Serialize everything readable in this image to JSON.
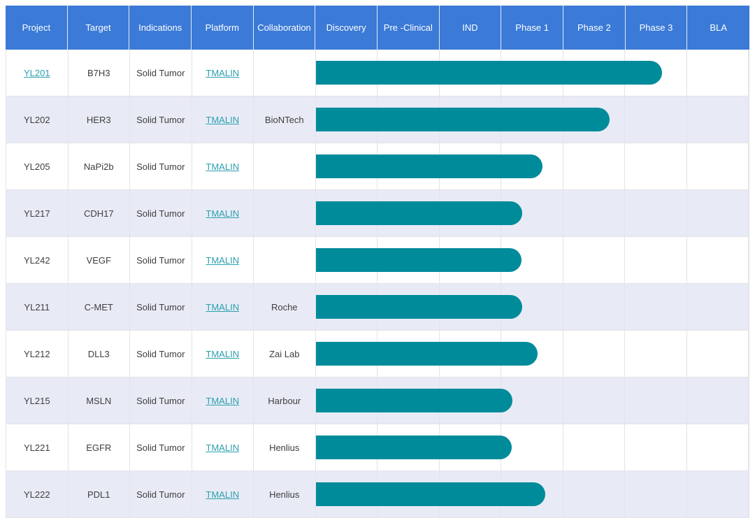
{
  "header": {
    "columns": [
      "Project",
      "Target",
      "Indications",
      "Platform",
      "Collaboration",
      "Discovery",
      "Pre -Clinical",
      "IND",
      "Phase 1",
      "Phase 2",
      "Phase 3",
      "BLA"
    ]
  },
  "chart_data": {
    "type": "table",
    "subtype": "gantt-pipeline",
    "stage_columns": [
      "Discovery",
      "Pre -Clinical",
      "IND",
      "Phase 1",
      "Phase 2",
      "Phase 3",
      "BLA"
    ],
    "stage_axis_note": "bar_units measured in column widths from start of Discovery; 7 units = full span through BLA",
    "rows": [
      {
        "project": "YL201",
        "project_is_link": true,
        "target": "B7H3",
        "indications": "Solid Tumor",
        "platform": "TMALIN",
        "collaboration": "",
        "stage_reached": "Phase 3",
        "bar_units": 5.6
      },
      {
        "project": "YL202",
        "project_is_link": false,
        "target": "HER3",
        "indications": "Solid Tumor",
        "platform": "TMALIN",
        "collaboration": "BioNTech",
        "stage_reached": "Phase 2",
        "bar_units": 4.75
      },
      {
        "project": "YL205",
        "project_is_link": false,
        "target": "NaPi2b",
        "indications": "Solid Tumor",
        "platform": "TMALIN",
        "collaboration": "",
        "stage_reached": "Phase 1",
        "bar_units": 3.67
      },
      {
        "project": "YL217",
        "project_is_link": false,
        "target": "CDH17",
        "indications": "Solid Tumor",
        "platform": "TMALIN",
        "collaboration": "",
        "stage_reached": "Phase 1",
        "bar_units": 3.34
      },
      {
        "project": "YL242",
        "project_is_link": false,
        "target": "VEGF",
        "indications": "Solid Tumor",
        "platform": "TMALIN",
        "collaboration": "",
        "stage_reached": "Phase 1",
        "bar_units": 3.33
      },
      {
        "project": "YL211",
        "project_is_link": false,
        "target": "C-MET",
        "indications": "Solid Tumor",
        "platform": "TMALIN",
        "collaboration": "Roche",
        "stage_reached": "Phase 1",
        "bar_units": 3.34
      },
      {
        "project": "YL212",
        "project_is_link": false,
        "target": "DLL3",
        "indications": "Solid Tumor",
        "platform": "TMALIN",
        "collaboration": "Zai Lab",
        "stage_reached": "Phase 1",
        "bar_units": 3.59
      },
      {
        "project": "YL215",
        "project_is_link": false,
        "target": "MSLN",
        "indications": "Solid Tumor",
        "platform": "TMALIN",
        "collaboration": "Harbour",
        "stage_reached": "Phase 1",
        "bar_units": 3.18
      },
      {
        "project": "YL221",
        "project_is_link": false,
        "target": "EGFR",
        "indications": "Solid Tumor",
        "platform": "TMALIN",
        "collaboration": "Henlius",
        "stage_reached": "Phase 1",
        "bar_units": 3.17
      },
      {
        "project": "YL222",
        "project_is_link": false,
        "target": "PDL1",
        "indications": "Solid Tumor",
        "platform": "TMALIN",
        "collaboration": "Henlius",
        "stage_reached": "Phase 1",
        "bar_units": 3.71
      }
    ]
  },
  "colors": {
    "header_bg": "#3b7ad7",
    "bar": "#008b9b",
    "row_alt": "#e8ebf6",
    "link": "#2c9faf",
    "text": "#3e3e3e",
    "border": "#e3e3e8"
  }
}
